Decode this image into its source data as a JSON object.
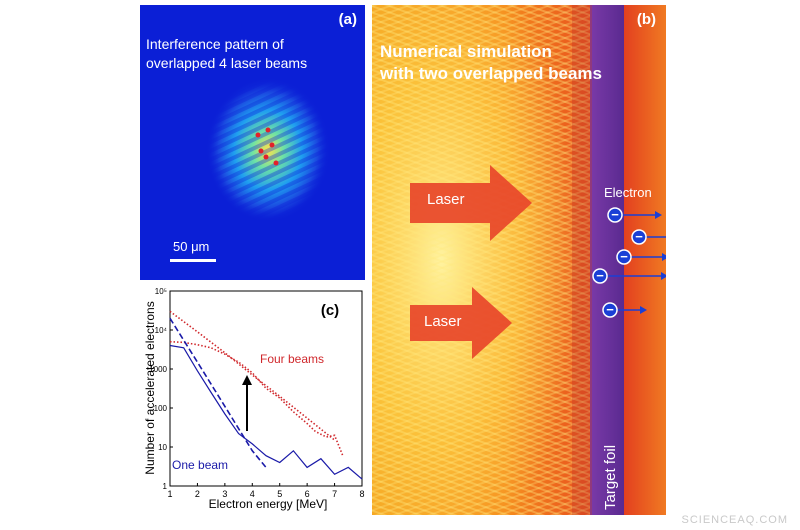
{
  "panel_a": {
    "label": "(a)",
    "caption_line1": "Interference pattern of",
    "caption_line2": "overlapped 4 laser beams",
    "scale_label": "50 μm"
  },
  "panel_b": {
    "label": "(b)",
    "caption_line1": "Numerical simulation",
    "caption_line2": "with two overlapped beams",
    "laser_label_1": "Laser",
    "laser_label_2": "Laser",
    "electron_label": "Electron",
    "electron_symbol": "−",
    "target_label": "Target foil"
  },
  "panel_c": {
    "label": "(c)",
    "four_beams_label": "Four beams",
    "one_beam_label": "One beam"
  },
  "watermark": "SCIENCEAQ.COM",
  "colors": {
    "four_beams": "#d0282c",
    "one_beam": "#1a1aa8",
    "laser_arrow": "#e8472a",
    "electron": "#1a3fd6"
  },
  "chart_data": {
    "type": "line",
    "xlabel": "Electron energy [MeV]",
    "ylabel": "Number of accelerated electrons",
    "xlim": [
      1,
      8
    ],
    "ylim": [
      1,
      100000
    ],
    "yscale": "log",
    "x_ticks": [
      "1",
      "2",
      "3",
      "4",
      "5",
      "6",
      "7",
      "8"
    ],
    "y_ticks": [
      "1",
      "10",
      "100",
      "1000",
      "10⁴",
      "10⁵"
    ],
    "series": [
      {
        "name": "Four beams",
        "style": "dotted",
        "color": "#d0282c",
        "x": [
          1.0,
          1.5,
          2.0,
          2.5,
          3.0,
          3.5,
          4.0,
          4.5,
          5.0,
          5.5,
          6.0,
          6.3,
          6.7,
          7.0,
          7.3
        ],
        "y": [
          5000,
          4800,
          4200,
          3500,
          2400,
          1500,
          800,
          320,
          180,
          80,
          40,
          25,
          18,
          20,
          6
        ]
      },
      {
        "name": "Four beams (fit)",
        "style": "dotted",
        "color": "#d0282c",
        "x": [
          1.0,
          2.0,
          3.0,
          4.0,
          5.0,
          6.0,
          7.0
        ],
        "y": [
          30000,
          9000,
          2600,
          700,
          200,
          55,
          15
        ]
      },
      {
        "name": "One beam",
        "style": "solid",
        "color": "#1a1aa8",
        "x": [
          1.0,
          1.5,
          2.0,
          2.5,
          3.0,
          3.5,
          4.0,
          4.5,
          5.0,
          5.5,
          6.0,
          6.5,
          7.0,
          7.5,
          8.0
        ],
        "y": [
          4000,
          3500,
          900,
          250,
          70,
          22,
          12,
          6,
          4,
          8,
          3,
          5,
          2,
          3,
          1.5
        ]
      },
      {
        "name": "One beam (fit)",
        "style": "dashed",
        "color": "#1a1aa8",
        "x": [
          1.0,
          2.0,
          3.0,
          4.0,
          4.5
        ],
        "y": [
          20000,
          1500,
          110,
          8,
          3
        ]
      }
    ]
  }
}
